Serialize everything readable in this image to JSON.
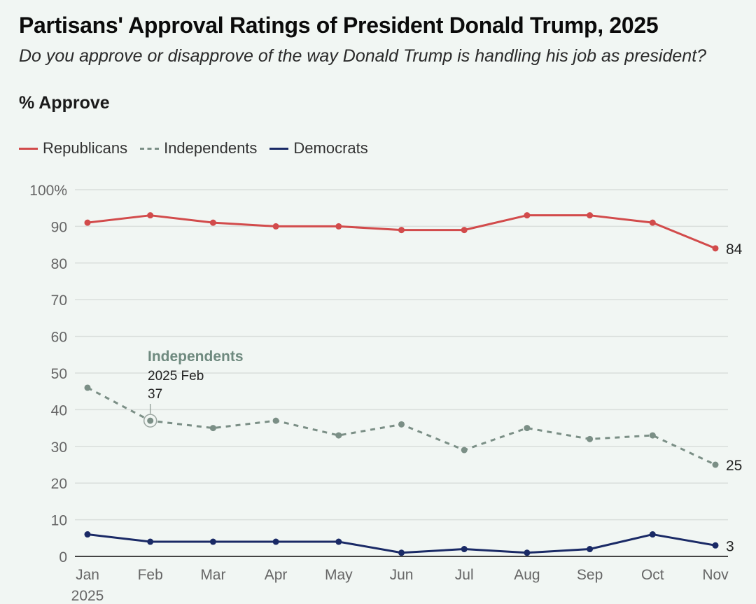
{
  "header": {
    "title": "Partisans' Approval Ratings of President Donald Trump, 2025",
    "subtitle": "Do you approve or disapprove of the way Donald Trump is handling his job as president?",
    "unit_label": "% Approve"
  },
  "legend": [
    {
      "label": "Republicans",
      "style": "solid",
      "color": "#d24b4b"
    },
    {
      "label": "Independents",
      "style": "dashed",
      "color": "#7b8f86"
    },
    {
      "label": "Democrats",
      "style": "solid",
      "color": "#1a2a66"
    }
  ],
  "annotation": {
    "series": "Independents",
    "date": "2025 Feb",
    "value": "37"
  },
  "chart_data": {
    "type": "line",
    "title": "Partisans' Approval Ratings of President Donald Trump, 2025",
    "subtitle": "Do you approve or disapprove of the way Donald Trump is handling his job as president?",
    "ylabel": "% Approve",
    "xlabel": "",
    "x": [
      "Jan",
      "Feb",
      "Mar",
      "Apr",
      "May",
      "Jun",
      "Jul",
      "Aug",
      "Sep",
      "Oct",
      "Nov"
    ],
    "x_tick_labels": [
      "Jan",
      "Feb",
      "Mar",
      "Apr",
      "May",
      "Jun",
      "Jul",
      "Aug",
      "Sep",
      "Oct",
      "Nov"
    ],
    "x_sublabel": "2025",
    "ylim": [
      0,
      100
    ],
    "y_ticks": [
      0,
      10,
      20,
      30,
      40,
      50,
      60,
      70,
      80,
      90,
      100
    ],
    "y_tick_labels": [
      "0",
      "10",
      "20",
      "30",
      "40",
      "50",
      "60",
      "70",
      "80",
      "90",
      "100%"
    ],
    "grid": true,
    "legend_position": "top-left",
    "series": [
      {
        "name": "Republicans",
        "color": "#d24b4b",
        "style": "solid",
        "values": [
          91,
          93,
          91,
          90,
          90,
          89,
          89,
          93,
          93,
          91,
          84
        ],
        "end_label": "84"
      },
      {
        "name": "Independents",
        "color": "#7b8f86",
        "style": "dashed",
        "values": [
          46,
          37,
          35,
          37,
          33,
          36,
          29,
          35,
          32,
          33,
          25
        ],
        "end_label": "25"
      },
      {
        "name": "Democrats",
        "color": "#1a2a66",
        "style": "solid",
        "values": [
          6,
          4,
          4,
          4,
          4,
          1,
          2,
          1,
          2,
          6,
          3
        ],
        "end_label": "3"
      }
    ]
  }
}
